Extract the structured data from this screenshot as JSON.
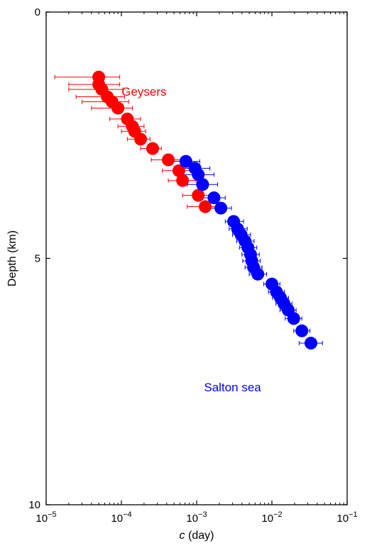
{
  "chart_data": {
    "type": "scatter",
    "xscale": "log",
    "xlim": [
      1e-05,
      0.1
    ],
    "ylim": [
      0,
      10
    ],
    "y_inverted": true,
    "xlabel": {
      "italic": "c",
      "rest": " (day)"
    },
    "ylabel": "Depth (km)",
    "xticks": [
      {
        "base": "10",
        "exp": "−5"
      },
      {
        "base": "10",
        "exp": "−4"
      },
      {
        "base": "10",
        "exp": "−3"
      },
      {
        "base": "10",
        "exp": "−2"
      },
      {
        "base": "10",
        "exp": "−1"
      }
    ],
    "yticks": [
      "0",
      "5",
      "10"
    ],
    "grid": false,
    "annotations": [
      {
        "text": "Geysers",
        "color": "#ff0000",
        "x": 0.0002,
        "y": 1.7
      },
      {
        "text": "Salton sea",
        "color": "#0000ff",
        "x": 0.003,
        "y": 7.7
      }
    ],
    "series": [
      {
        "color": "#ff0000",
        "points": [
          {
            "x": 5e-05,
            "y": 1.32,
            "xerr": [
              1.3e-05,
              9.5e-05
            ]
          },
          {
            "x": 5e-05,
            "y": 1.47,
            "xerr": [
              2e-05,
              9.5e-05
            ]
          },
          {
            "x": 5.5e-05,
            "y": 1.57,
            "xerr": [
              2e-05,
              0.000105
            ]
          },
          {
            "x": 6.5e-05,
            "y": 1.72,
            "xerr": [
              2.5e-05,
              0.00011
            ]
          },
          {
            "x": 7.5e-05,
            "y": 1.82,
            "xerr": [
              3e-05,
              0.000125
            ]
          },
          {
            "x": 9e-05,
            "y": 1.95,
            "xerr": [
              4e-05,
              0.00014
            ]
          },
          {
            "x": 0.00012,
            "y": 2.17,
            "xerr": [
              7e-05,
              0.00018
            ]
          },
          {
            "x": 0.00014,
            "y": 2.32,
            "xerr": [
              9e-05,
              0.0002
            ]
          },
          {
            "x": 0.00015,
            "y": 2.42,
            "xerr": [
              0.0001,
              0.00021
            ]
          },
          {
            "x": 0.00018,
            "y": 2.58,
            "xerr": [
              0.00012,
              0.00024
            ]
          },
          {
            "x": 0.00026,
            "y": 2.77,
            "xerr": [
              0.00018,
              0.00034
            ]
          },
          {
            "x": 0.00042,
            "y": 3.0,
            "xerr": [
              0.00025,
              0.00065
            ]
          },
          {
            "x": 0.00058,
            "y": 3.22,
            "xerr": [
              0.00035,
              0.00085
            ]
          },
          {
            "x": 0.00065,
            "y": 3.42,
            "xerr": [
              0.00042,
              0.00098
            ]
          },
          {
            "x": 0.00105,
            "y": 3.72,
            "xerr": [
              0.00065,
              0.0017
            ]
          },
          {
            "x": 0.0013,
            "y": 3.95,
            "xerr": [
              0.00075,
              0.0021
            ]
          }
        ]
      },
      {
        "color": "#0000ff",
        "points": [
          {
            "x": 0.00072,
            "y": 3.03,
            "xerr": [
              0.00045,
              0.0011
            ]
          },
          {
            "x": 0.00095,
            "y": 3.17,
            "xerr": [
              0.0006,
              0.0015
            ]
          },
          {
            "x": 0.00105,
            "y": 3.3,
            "xerr": [
              0.00065,
              0.0017
            ]
          },
          {
            "x": 0.0012,
            "y": 3.5,
            "xerr": [
              0.00075,
              0.0019
            ]
          },
          {
            "x": 0.0017,
            "y": 3.77,
            "xerr": [
              0.0012,
              0.0024
            ]
          },
          {
            "x": 0.0021,
            "y": 3.98,
            "xerr": [
              0.0015,
              0.0029
            ]
          },
          {
            "x": 0.0031,
            "y": 4.25,
            "xerr": [
              0.0024,
              0.0042
            ]
          },
          {
            "x": 0.0035,
            "y": 4.4,
            "xerr": [
              0.0027,
              0.0047
            ]
          },
          {
            "x": 0.0039,
            "y": 4.52,
            "xerr": [
              0.003,
              0.0052
            ]
          },
          {
            "x": 0.0044,
            "y": 4.65,
            "xerr": [
              0.0034,
              0.0058
            ]
          },
          {
            "x": 0.0048,
            "y": 4.78,
            "xerr": [
              0.0037,
              0.0063
            ]
          },
          {
            "x": 0.0052,
            "y": 4.92,
            "xerr": [
              0.004,
              0.0068
            ]
          },
          {
            "x": 0.0054,
            "y": 5.05,
            "xerr": [
              0.0041,
              0.007
            ]
          },
          {
            "x": 0.0057,
            "y": 5.18,
            "xerr": [
              0.0044,
              0.0074
            ]
          },
          {
            "x": 0.0065,
            "y": 5.32,
            "xerr": [
              0.005,
              0.0085
            ]
          },
          {
            "x": 0.01,
            "y": 5.52,
            "xerr": [
              0.0078,
              0.0128
            ]
          },
          {
            "x": 0.0115,
            "y": 5.68,
            "xerr": [
              0.009,
              0.0147
            ]
          },
          {
            "x": 0.013,
            "y": 5.8,
            "xerr": [
              0.0102,
              0.0166
            ]
          },
          {
            "x": 0.0145,
            "y": 5.92,
            "xerr": [
              0.0113,
              0.0185
            ]
          },
          {
            "x": 0.0165,
            "y": 6.05,
            "xerr": [
              0.0128,
              0.021
            ]
          },
          {
            "x": 0.0195,
            "y": 6.22,
            "xerr": [
              0.015,
              0.025
            ]
          },
          {
            "x": 0.025,
            "y": 6.47,
            "xerr": [
              0.0195,
              0.032
            ]
          },
          {
            "x": 0.033,
            "y": 6.72,
            "xerr": [
              0.023,
              0.047
            ]
          }
        ]
      }
    ]
  }
}
